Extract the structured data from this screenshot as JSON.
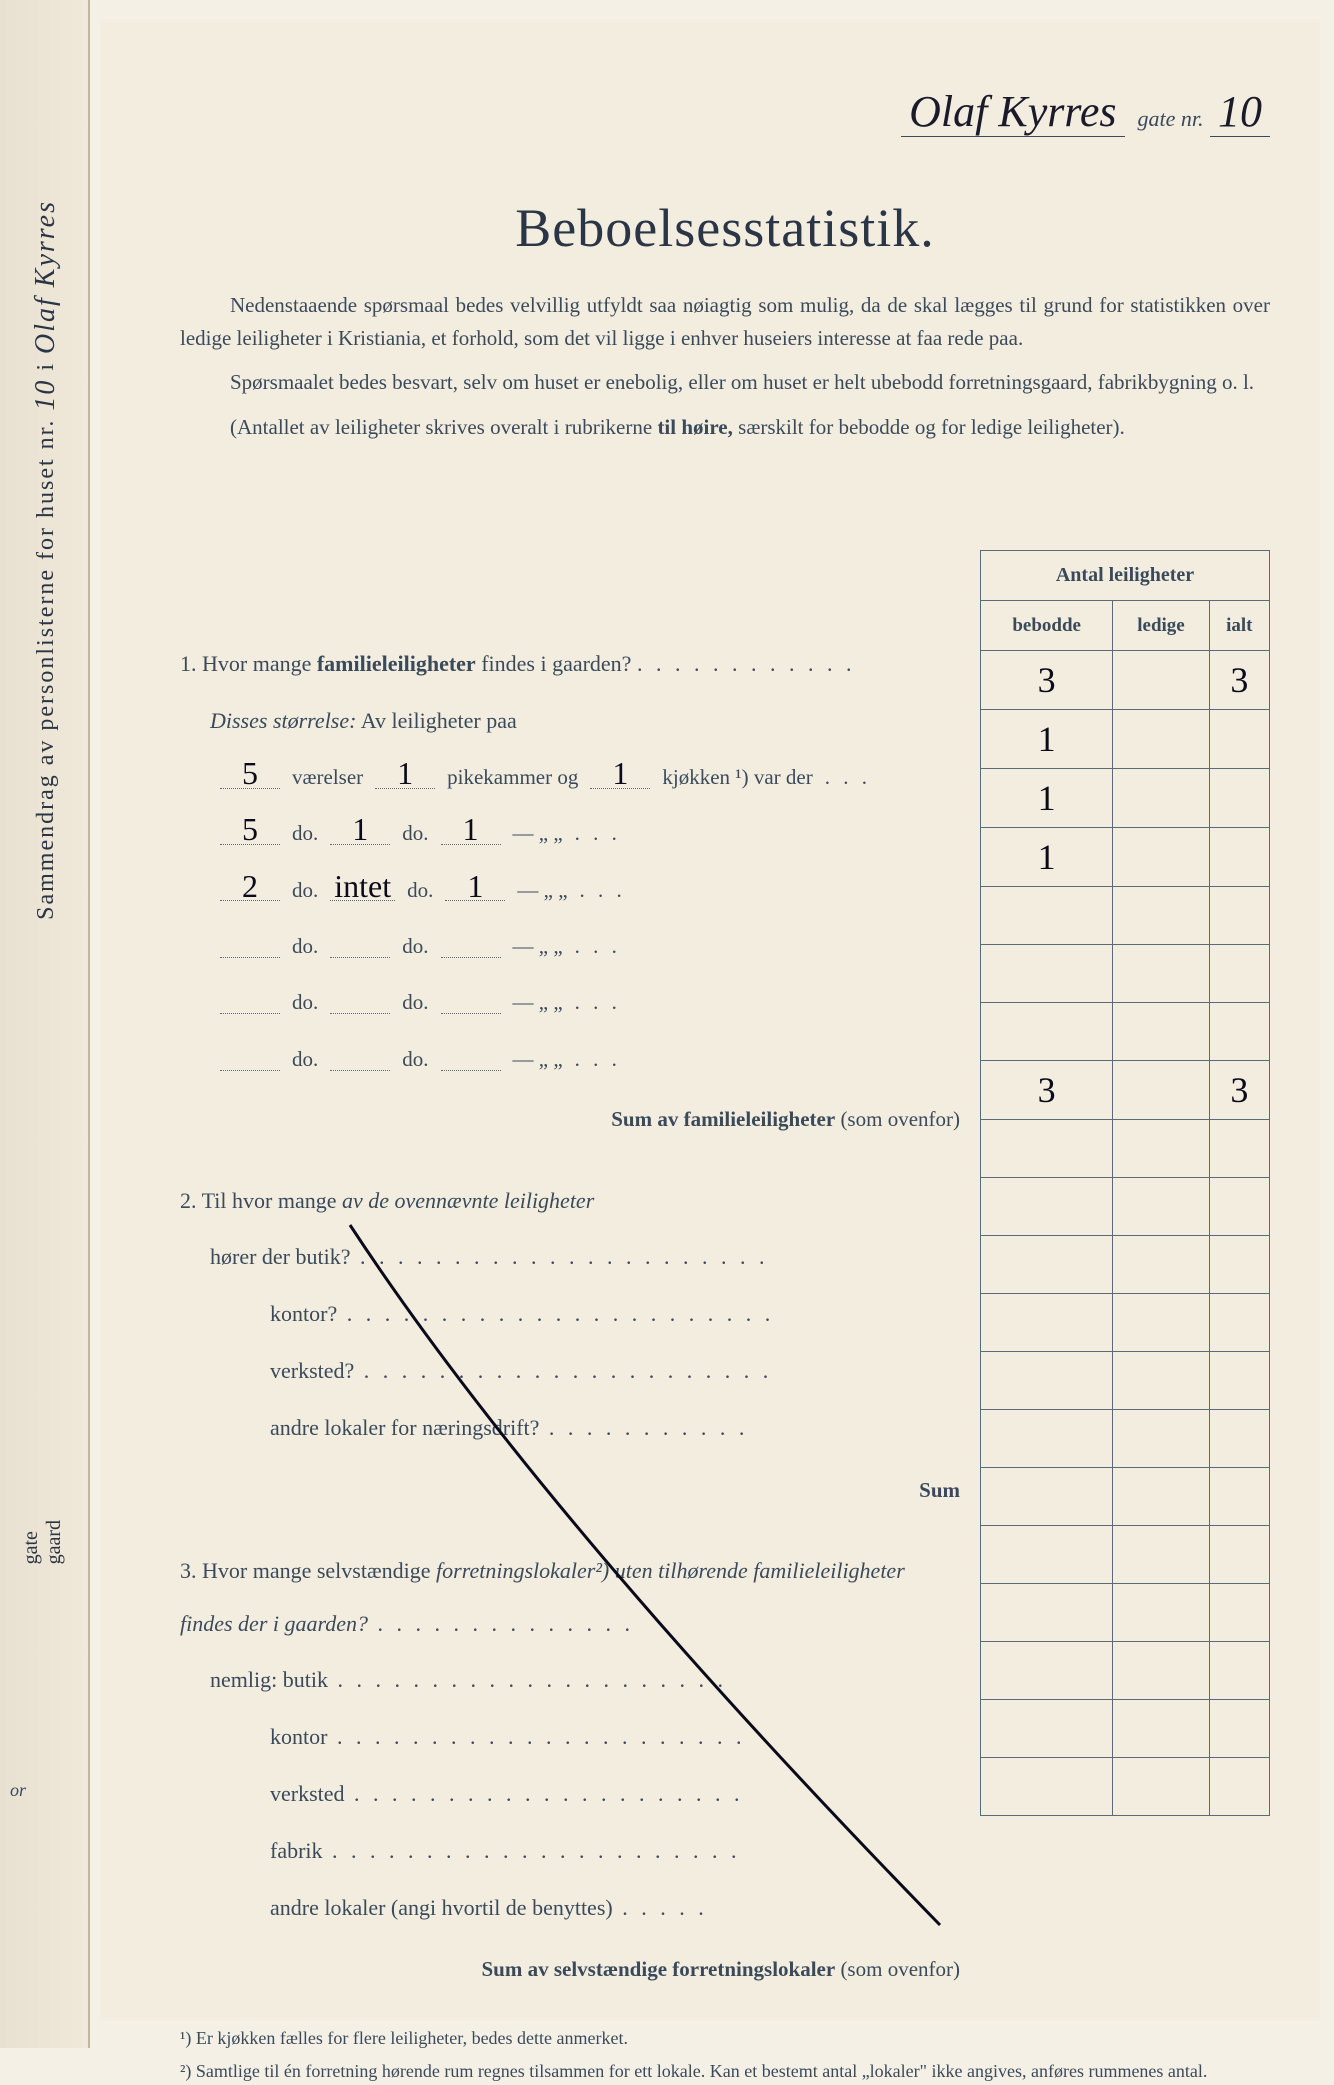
{
  "header": {
    "street_handwritten": "Olaf Kyrres",
    "gate_label": "gate nr.",
    "number_handwritten": "10"
  },
  "side": {
    "spine_text": "Sammendrag av personlisterne for huset nr.",
    "spine_num": "10",
    "spine_i": "i",
    "spine_street": "Olaf Kyrres",
    "spine_gate": "gate",
    "spine_gaard": "gaard",
    "or": "or"
  },
  "title": "Beboelsesstatistik.",
  "intro": {
    "p1": "Nedenstaaende spørsmaal bedes velvillig utfyldt saa nøiagtig som mulig, da de skal lægges til grund for statistikken over ledige leiligheter i Kristiania, et forhold, som det vil ligge i enhver huseiers interesse at faa rede paa.",
    "p2": "Spørsmaalet bedes besvart, selv om huset er enebolig, eller om huset er helt ubebodd forretningsgaard, fabrikbygning o. l.",
    "p3_a": "(Antallet av leiligheter skrives overalt i rubrikerne ",
    "p3_b": "til høire,",
    "p3_c": " særskilt for bebodde og for ledige leiligheter)."
  },
  "table_header": {
    "title": "Antal leiligheter",
    "col1": "bebodde",
    "col2": "ledige",
    "col3": "ialt"
  },
  "q1": {
    "num": "1.",
    "text_a": "Hvor mange ",
    "text_b": "familieleiligheter",
    "text_c": " findes i gaarden?",
    "disses": "Disses størrelse:",
    "av": " Av leiligheter paa",
    "rows": [
      {
        "vaer": "5",
        "vaer_label": "værelser",
        "pike": "1",
        "pike_label": "pikekammer og",
        "kjok": "1",
        "kjok_label": "kjøkken ¹) var der",
        "count": "1"
      },
      {
        "vaer": "5",
        "vaer_label": "do.",
        "pike": "1",
        "pike_label": "do.",
        "kjok": "1",
        "kjok_label": "—        „    „",
        "count": "1"
      },
      {
        "vaer": "2",
        "vaer_label": "do.",
        "pike": "intet",
        "pike_label": "do.",
        "kjok": "1",
        "kjok_label": "—        „    „",
        "count": "1"
      },
      {
        "vaer": "",
        "vaer_label": "do.",
        "pike": "",
        "pike_label": "do.",
        "kjok": "",
        "kjok_label": "—        „    „",
        "count": ""
      },
      {
        "vaer": "",
        "vaer_label": "do.",
        "pike": "",
        "pike_label": "do.",
        "kjok": "",
        "kjok_label": "—        „    „",
        "count": ""
      },
      {
        "vaer": "",
        "vaer_label": "do.",
        "pike": "",
        "pike_label": "do.",
        "kjok": "",
        "kjok_label": "—        „    „",
        "count": ""
      }
    ],
    "sum_label": "Sum av familieleiligheter",
    "sum_paren": "(som ovenfor)",
    "total_bebodde": "3",
    "total_ialt": "3",
    "sum_bebodde": "3",
    "sum_ialt": "3"
  },
  "q2": {
    "num": "2.",
    "text_a": "Til hvor mange ",
    "text_b": "av de ovennævnte leiligheter",
    "line1": "hører der butik?",
    "line2": "kontor?",
    "line3": "verksted?",
    "line4": "andre lokaler for næringsdrift?",
    "sum": "Sum"
  },
  "q3": {
    "num": "3.",
    "text_a": "Hvor mange selvstændige ",
    "text_b": "forretningslokaler²)",
    "text_c": " uten tilhørende familieleiligheter findes der i gaarden?",
    "nemlig": "nemlig: butik",
    "line2": "kontor",
    "line3": "verksted",
    "line4": "fabrik",
    "line5": "andre lokaler (angi hvortil de benyttes)",
    "sum_label": "Sum av selvstændige forretningslokaler",
    "sum_paren": "(som ovenfor)"
  },
  "footnotes": {
    "f1": "¹) Er kjøkken fælles for flere leiligheter, bedes dette anmerket.",
    "f2": "²) Samtlige til én forretning hørende rum regnes tilsammen for ett lokale. Kan et bestemt antal „lokaler\" ikke angives, anføres rummenes antal."
  },
  "colors": {
    "paper": "#f3ede0",
    "ink": "#3a4a5a",
    "handwriting": "#1a1a2a",
    "border": "#5a6a7a"
  }
}
